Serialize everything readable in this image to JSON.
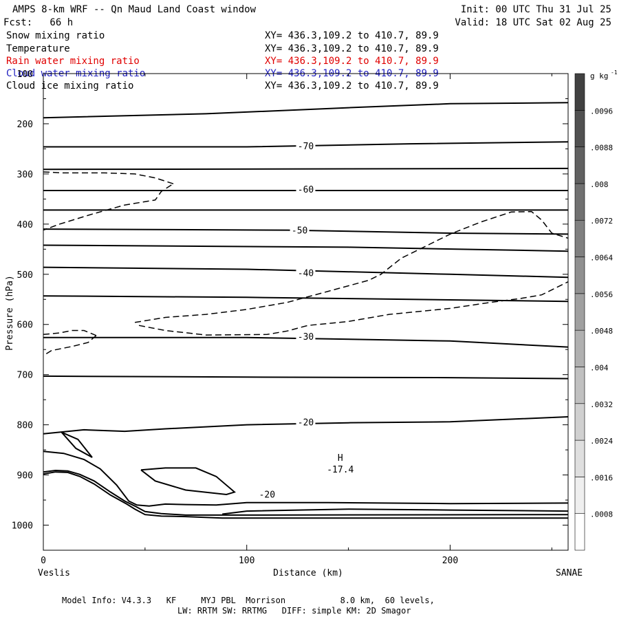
{
  "header": {
    "title": "AMPS 8-km WRF -- Qn Maud Land Coast window",
    "forecast": "Fcst:   66 h",
    "init": "Init: 00 UTC Thu 31 Jul 25",
    "valid": "Valid: 18 UTC Sat 02 Aug 25"
  },
  "fields": [
    {
      "name": "Snow mixing ratio",
      "xy": "XY= 436.3,109.2 to 410.7, 89.9",
      "color": "#000000"
    },
    {
      "name": "Temperature",
      "xy": "XY= 436.3,109.2 to 410.7, 89.9",
      "color": "#000000"
    },
    {
      "name": "Rain water mixing ratio",
      "xy": "XY= 436.3,109.2 to 410.7, 89.9",
      "color": "#e00000"
    },
    {
      "name": "Cloud water mixing ratio",
      "xy": "XY= 436.3,109.2 to 410.7, 89.9",
      "color": "#2020c0"
    },
    {
      "name": "Cloud ice mixing ratio",
      "xy": "XY= 436.3,109.2 to 410.7, 89.9",
      "color": "#000000"
    }
  ],
  "chart_data": {
    "type": "line",
    "xlabel": "Distance (km)",
    "ylabel": "Pressure (hPa)",
    "xlim": [
      0,
      258
    ],
    "ylim": [
      1050,
      100
    ],
    "x_ticks": [
      0,
      100,
      200
    ],
    "y_ticks": [
      100,
      200,
      300,
      400,
      500,
      600,
      700,
      800,
      900,
      1000
    ],
    "endpoint_left": "Veslis",
    "endpoint_right": "SANAE",
    "temperature_contour_labels": [
      {
        "label": "-70",
        "x": 129,
        "p": 244
      },
      {
        "label": "-60",
        "x": 129,
        "p": 330
      },
      {
        "label": "-50",
        "x": 126,
        "p": 412
      },
      {
        "label": "-40",
        "x": 129,
        "p": 497
      },
      {
        "label": "-30",
        "x": 129,
        "p": 624
      },
      {
        "label": "-20",
        "x": 129,
        "p": 794
      },
      {
        "label": "-20",
        "x": 110,
        "p": 938
      }
    ],
    "extremum": {
      "symbol": "H",
      "value": "-17.4",
      "x": 145,
      "p": 876
    },
    "temperature_contours": [
      [
        [
          0,
          188
        ],
        [
          80,
          180
        ],
        [
          150,
          168
        ],
        [
          200,
          160
        ],
        [
          258,
          158
        ]
      ],
      [
        [
          0,
          246
        ],
        [
          100,
          246
        ],
        [
          180,
          240
        ],
        [
          258,
          236
        ]
      ],
      [
        [
          0,
          291
        ],
        [
          258,
          289
        ]
      ],
      [
        [
          0,
          333
        ],
        [
          258,
          333
        ]
      ],
      [
        [
          0,
          372
        ],
        [
          258,
          372
        ]
      ],
      [
        [
          0,
          410
        ],
        [
          120,
          412
        ],
        [
          200,
          418
        ],
        [
          258,
          420
        ]
      ],
      [
        [
          0,
          442
        ],
        [
          150,
          446
        ],
        [
          258,
          454
        ]
      ],
      [
        [
          0,
          486
        ],
        [
          100,
          490
        ],
        [
          200,
          500
        ],
        [
          258,
          506
        ]
      ],
      [
        [
          0,
          543
        ],
        [
          100,
          546
        ],
        [
          200,
          551
        ],
        [
          258,
          554
        ]
      ],
      [
        [
          0,
          626
        ],
        [
          100,
          626
        ],
        [
          200,
          633
        ],
        [
          258,
          645
        ]
      ],
      [
        [
          0,
          703
        ],
        [
          100,
          705
        ],
        [
          200,
          706
        ],
        [
          258,
          708
        ]
      ],
      [
        [
          0,
          894
        ],
        [
          6,
          891
        ],
        [
          12,
          892
        ],
        [
          18,
          899
        ],
        [
          25,
          912
        ],
        [
          33,
          934
        ],
        [
          40,
          952
        ],
        [
          45,
          962
        ],
        [
          50,
          973
        ],
        [
          58,
          977
        ],
        [
          70,
          980
        ],
        [
          88,
          980
        ],
        [
          258,
          979
        ]
      ],
      [
        [
          0,
          898
        ],
        [
          6,
          894
        ],
        [
          12,
          895
        ],
        [
          18,
          903
        ],
        [
          25,
          918
        ],
        [
          33,
          940
        ],
        [
          41,
          958
        ],
        [
          45,
          968
        ],
        [
          50,
          979
        ],
        [
          58,
          982
        ],
        [
          70,
          983
        ],
        [
          88,
          986
        ],
        [
          258,
          986
        ]
      ],
      [
        [
          0,
          853
        ],
        [
          10,
          857
        ],
        [
          20,
          869
        ],
        [
          28,
          888
        ],
        [
          36,
          920
        ],
        [
          42,
          952
        ],
        [
          46,
          960
        ],
        [
          52,
          962
        ],
        [
          60,
          958
        ],
        [
          70,
          959
        ],
        [
          85,
          960
        ],
        [
          100,
          955
        ],
        [
          140,
          955
        ],
        [
          200,
          957
        ],
        [
          258,
          956
        ]
      ],
      [
        [
          9,
          815
        ],
        [
          17,
          829
        ],
        [
          24,
          865
        ],
        [
          16,
          847
        ],
        [
          9,
          815
        ]
      ],
      [
        [
          48,
          890
        ],
        [
          60,
          886
        ],
        [
          75,
          886
        ],
        [
          85,
          903
        ],
        [
          94,
          934
        ],
        [
          90,
          939
        ],
        [
          70,
          930
        ],
        [
          55,
          912
        ],
        [
          48,
          890
        ]
      ],
      [
        [
          0,
          818
        ],
        [
          20,
          810
        ],
        [
          40,
          813
        ],
        [
          60,
          808
        ],
        [
          100,
          800
        ],
        [
          150,
          796
        ],
        [
          200,
          794
        ],
        [
          258,
          784
        ]
      ],
      [
        [
          88,
          978
        ],
        [
          100,
          972
        ],
        [
          150,
          968
        ],
        [
          200,
          970
        ],
        [
          258,
          972
        ]
      ]
    ],
    "snow_contours": [
      [
        [
          0,
          296
        ],
        [
          10,
          298
        ],
        [
          30,
          298
        ],
        [
          45,
          300
        ],
        [
          55,
          308
        ],
        [
          65,
          321
        ]
      ],
      [
        [
          63,
          322
        ],
        [
          58,
          335
        ],
        [
          55,
          352
        ],
        [
          40,
          362
        ],
        [
          24,
          380
        ],
        [
          8,
          400
        ],
        [
          0,
          412
        ]
      ],
      [
        [
          0,
          620
        ],
        [
          8,
          617
        ],
        [
          14,
          612
        ],
        [
          20,
          612
        ],
        [
          26,
          622
        ]
      ],
      [
        [
          26,
          622
        ],
        [
          22,
          636
        ],
        [
          14,
          644
        ],
        [
          4,
          652
        ],
        [
          0,
          662
        ]
      ],
      [
        [
          45,
          596
        ],
        [
          60,
          586
        ],
        [
          80,
          580
        ],
        [
          100,
          570
        ],
        [
          120,
          556
        ],
        [
          140,
          534
        ],
        [
          160,
          512
        ],
        [
          166,
          500
        ],
        [
          176,
          468
        ],
        [
          190,
          440
        ],
        [
          200,
          420
        ],
        [
          215,
          396
        ],
        [
          230,
          376
        ],
        [
          240,
          375
        ],
        [
          245,
          392
        ],
        [
          250,
          418
        ],
        [
          258,
          428
        ]
      ],
      [
        [
          47,
          602
        ],
        [
          60,
          612
        ],
        [
          80,
          621
        ],
        [
          110,
          620
        ],
        [
          120,
          613
        ],
        [
          130,
          602
        ],
        [
          150,
          594
        ],
        [
          170,
          580
        ],
        [
          200,
          568
        ],
        [
          220,
          556
        ],
        [
          235,
          548
        ],
        [
          245,
          541
        ],
        [
          258,
          515
        ]
      ]
    ]
  }
}
